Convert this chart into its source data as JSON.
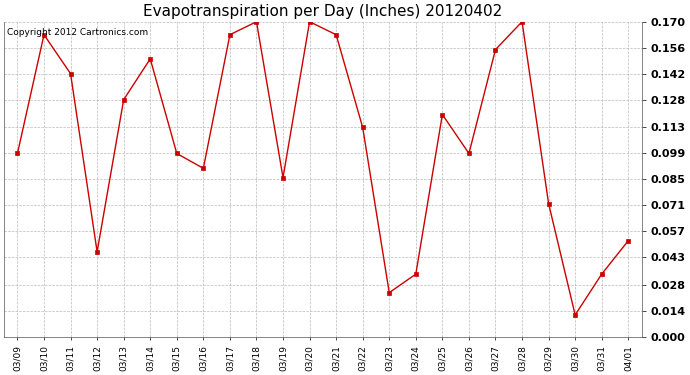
{
  "title": "Evapotranspiration per Day (Inches) 20120402",
  "copyright": "Copyright 2012 Cartronics.com",
  "dates": [
    "03/09",
    "03/10",
    "03/11",
    "03/12",
    "03/13",
    "03/14",
    "03/15",
    "03/16",
    "03/17",
    "03/18",
    "03/19",
    "03/20",
    "03/21",
    "03/22",
    "03/23",
    "03/24",
    "03/25",
    "03/26",
    "03/27",
    "03/28",
    "03/29",
    "03/30",
    "03/31",
    "04/01"
  ],
  "values": [
    0.099,
    0.163,
    0.142,
    0.046,
    0.128,
    0.15,
    0.099,
    0.091,
    0.163,
    0.17,
    0.086,
    0.17,
    0.163,
    0.113,
    0.024,
    0.034,
    0.12,
    0.099,
    0.155,
    0.17,
    0.072,
    0.012,
    0.034,
    0.052
  ],
  "line_color": "#cc0000",
  "marker": "s",
  "marker_size": 2.5,
  "bg_color": "#ffffff",
  "plot_bg_color": "#ffffff",
  "grid_color": "#aaaaaa",
  "ylim": [
    0.0,
    0.17
  ],
  "yticks": [
    0.0,
    0.014,
    0.028,
    0.043,
    0.057,
    0.071,
    0.085,
    0.099,
    0.113,
    0.128,
    0.142,
    0.156,
    0.17
  ],
  "title_fontsize": 11,
  "copyright_fontsize": 6.5,
  "tick_fontsize": 8,
  "xtick_fontsize": 6.5
}
